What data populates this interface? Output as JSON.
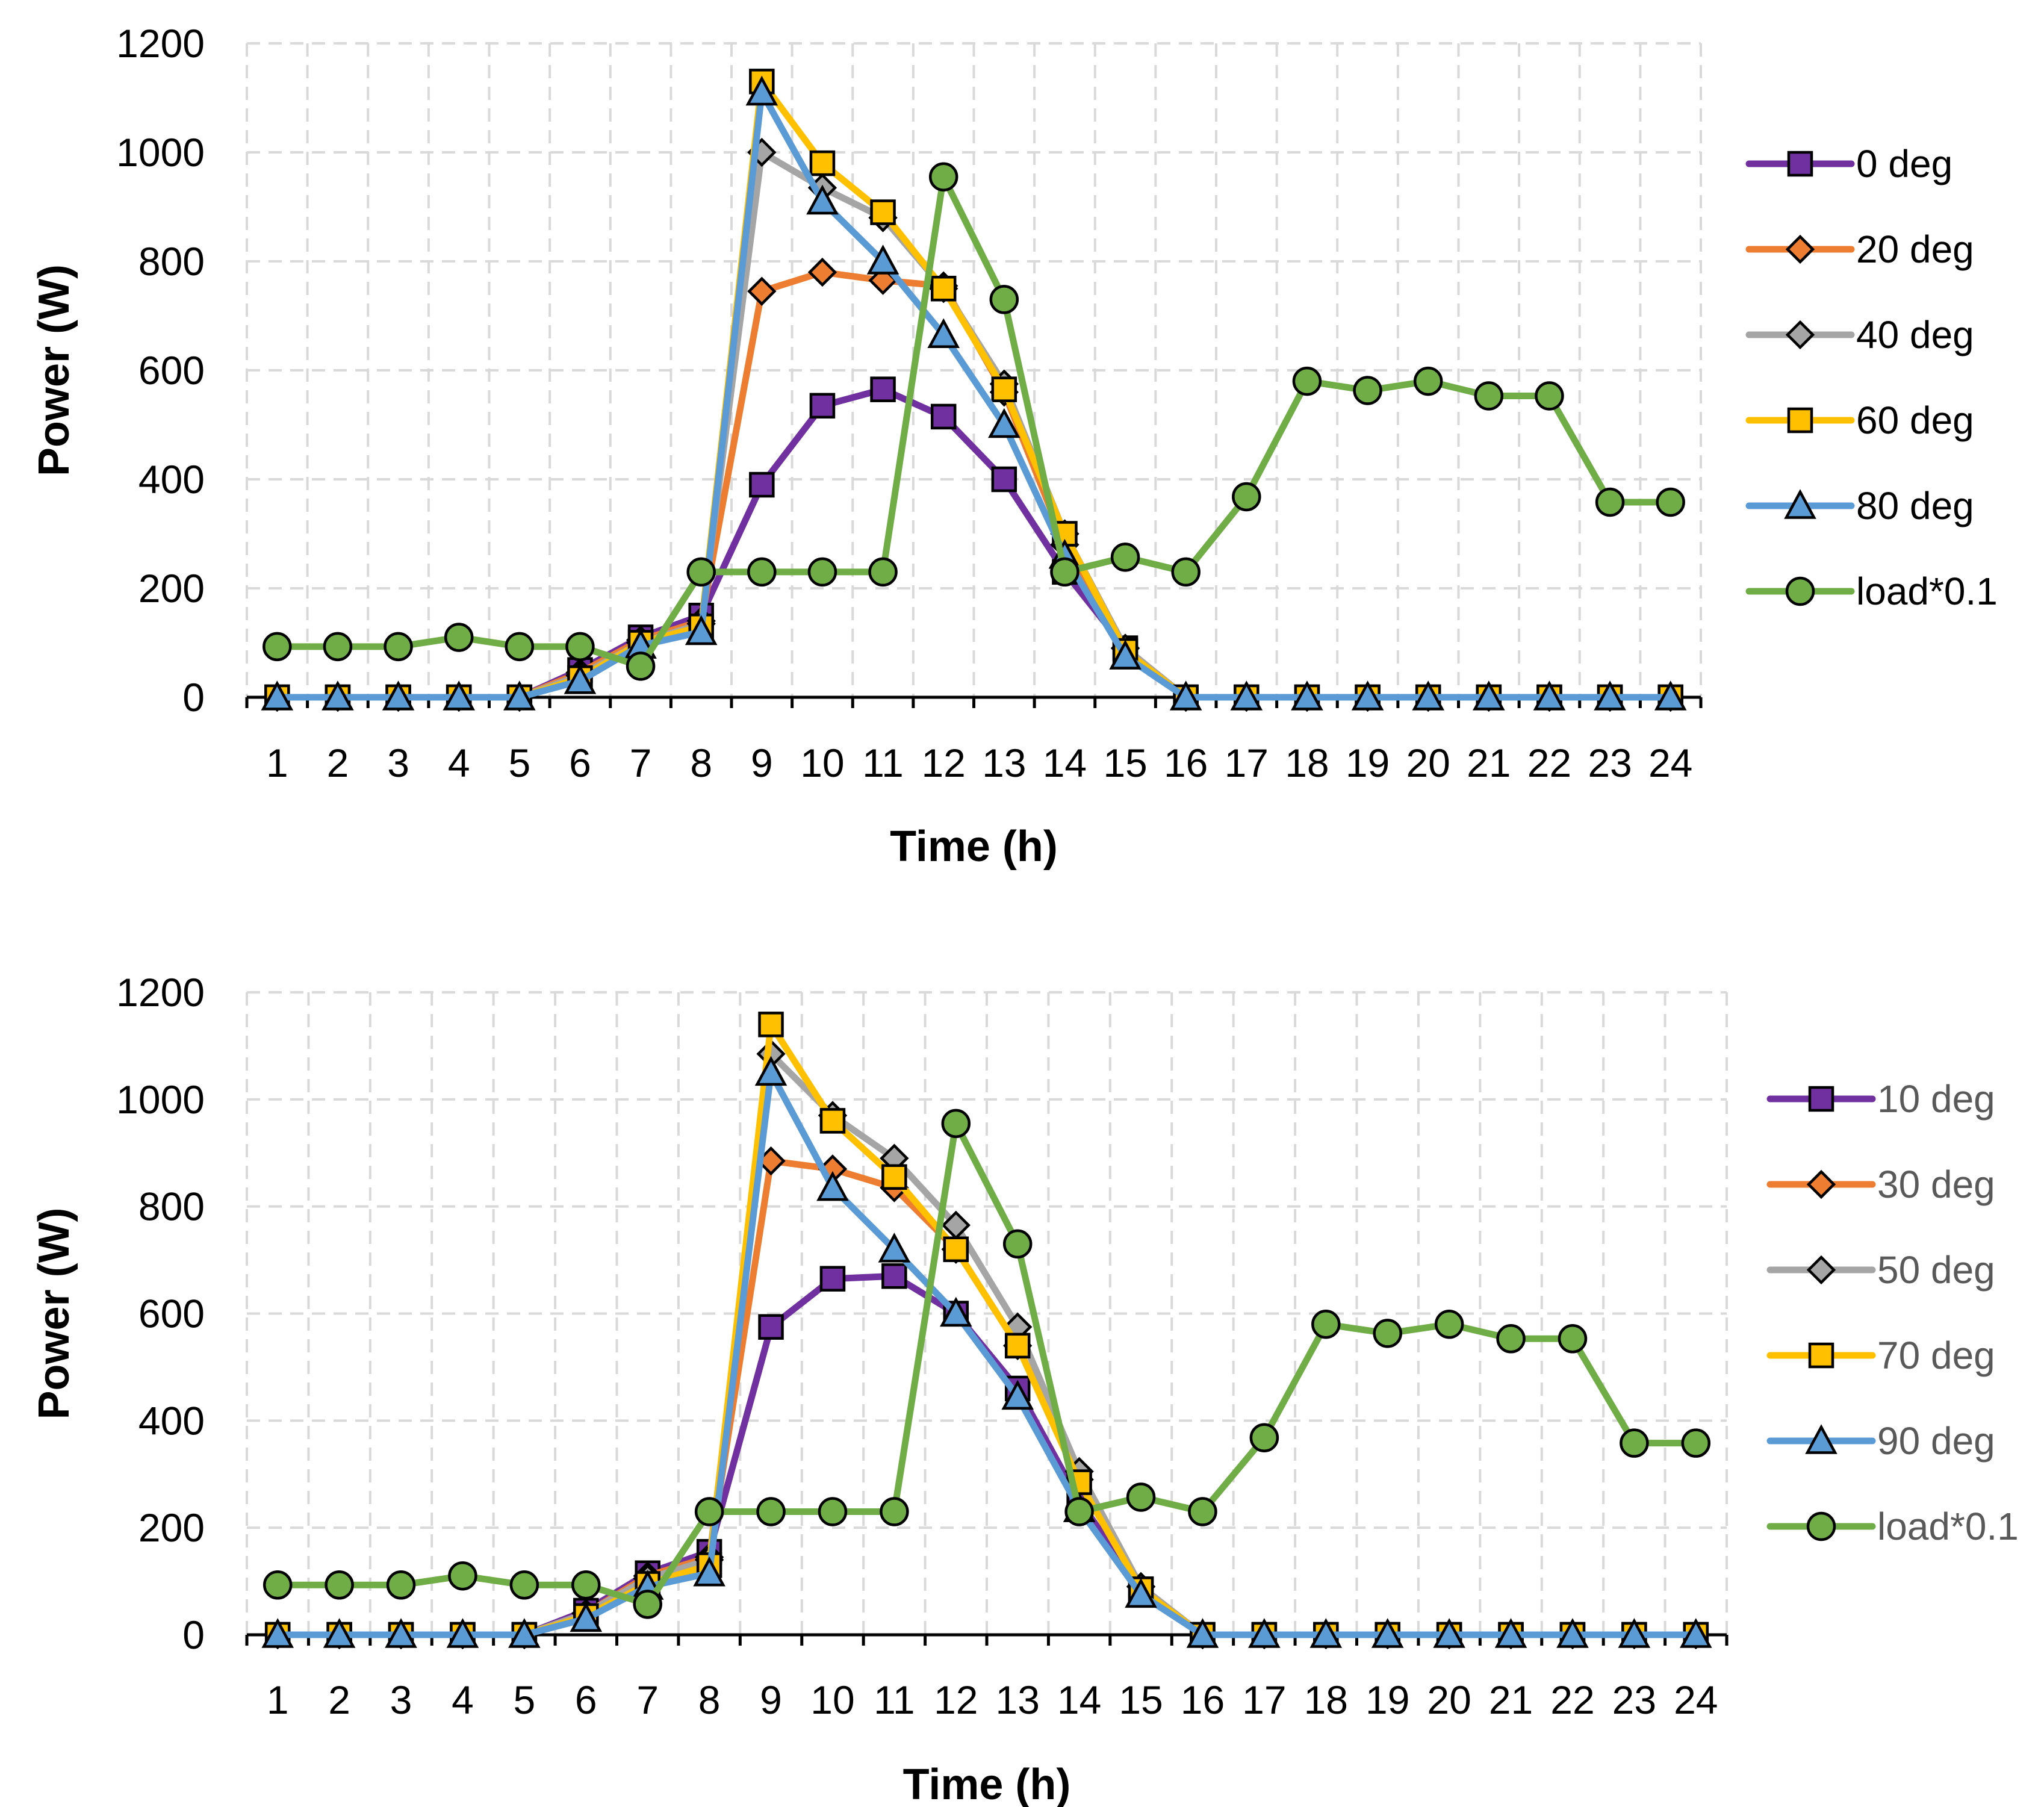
{
  "chart_data": [
    {
      "type": "line",
      "xlabel": "Time (h)",
      "ylabel": "Power (W)",
      "ylim": [
        0,
        1200
      ],
      "yticks": [
        0,
        200,
        400,
        600,
        800,
        1000,
        1200
      ],
      "categories": [
        "1",
        "2",
        "3",
        "4",
        "5",
        "6",
        "7",
        "8",
        "9",
        "10",
        "11",
        "12",
        "13",
        "14",
        "15",
        "16",
        "17",
        "18",
        "19",
        "20",
        "21",
        "22",
        "23",
        "24"
      ],
      "grid": true,
      "legend_position": "right",
      "legend_style": "default",
      "series": [
        {
          "name": "0 deg",
          "color": "#7030a0",
          "marker": "square",
          "values": [
            0,
            0,
            0,
            0,
            0,
            50,
            110,
            150,
            390,
            535,
            565,
            515,
            400,
            230,
            90,
            0,
            0,
            0,
            0,
            0,
            0,
            0,
            0,
            0
          ]
        },
        {
          "name": "20 deg",
          "color": "#ed7d31",
          "marker": "diamond",
          "values": [
            0,
            0,
            0,
            0,
            0,
            45,
            105,
            140,
            745,
            780,
            765,
            755,
            560,
            280,
            90,
            0,
            0,
            0,
            0,
            0,
            0,
            0,
            0,
            0
          ]
        },
        {
          "name": "40 deg",
          "color": "#a5a5a5",
          "marker": "diamond",
          "values": [
            0,
            0,
            0,
            0,
            0,
            40,
            100,
            135,
            1000,
            935,
            880,
            750,
            575,
            300,
            90,
            0,
            0,
            0,
            0,
            0,
            0,
            0,
            0,
            0
          ]
        },
        {
          "name": "60 deg",
          "color": "#ffc000",
          "marker": "square",
          "values": [
            0,
            0,
            0,
            0,
            0,
            35,
            100,
            130,
            1130,
            980,
            890,
            750,
            565,
            300,
            85,
            0,
            0,
            0,
            0,
            0,
            0,
            0,
            0,
            0
          ]
        },
        {
          "name": "80 deg",
          "color": "#5b9bd5",
          "marker": "triangle",
          "values": [
            0,
            0,
            0,
            0,
            0,
            30,
            95,
            120,
            1110,
            910,
            800,
            665,
            500,
            260,
            75,
            0,
            0,
            0,
            0,
            0,
            0,
            0,
            0,
            0
          ]
        },
        {
          "name": "load*0.1",
          "color": "#70ad47",
          "marker": "circle",
          "values": [
            93,
            93,
            93,
            110,
            93,
            93,
            57,
            230,
            230,
            230,
            230,
            955,
            730,
            230,
            257,
            230,
            368,
            580,
            563,
            580,
            553,
            553,
            358,
            358
          ]
        }
      ]
    },
    {
      "type": "line",
      "xlabel": "Time (h)",
      "ylabel": "Power (W)",
      "ylim": [
        0,
        1200
      ],
      "yticks": [
        0,
        200,
        400,
        600,
        800,
        1000,
        1200
      ],
      "categories": [
        "1",
        "2",
        "3",
        "4",
        "5",
        "6",
        "7",
        "8",
        "9",
        "10",
        "11",
        "12",
        "13",
        "14",
        "15",
        "16",
        "17",
        "18",
        "19",
        "20",
        "21",
        "22",
        "23",
        "24"
      ],
      "grid": true,
      "legend_position": "right",
      "legend_style": "muted",
      "series": [
        {
          "name": "10 deg",
          "color": "#7030a0",
          "marker": "square",
          "values": [
            0,
            0,
            0,
            0,
            0,
            45,
            115,
            155,
            575,
            665,
            670,
            600,
            460,
            250,
            85,
            0,
            0,
            0,
            0,
            0,
            0,
            0,
            0,
            0
          ]
        },
        {
          "name": "30 deg",
          "color": "#ed7d31",
          "marker": "diamond",
          "values": [
            0,
            0,
            0,
            0,
            0,
            40,
            110,
            145,
            885,
            870,
            835,
            720,
            540,
            290,
            90,
            0,
            0,
            0,
            0,
            0,
            0,
            0,
            0,
            0
          ]
        },
        {
          "name": "50 deg",
          "color": "#a5a5a5",
          "marker": "diamond",
          "values": [
            0,
            0,
            0,
            0,
            0,
            40,
            105,
            140,
            1085,
            970,
            890,
            765,
            575,
            305,
            90,
            0,
            0,
            0,
            0,
            0,
            0,
            0,
            0,
            0
          ]
        },
        {
          "name": "70 deg",
          "color": "#ffc000",
          "marker": "square",
          "values": [
            0,
            0,
            0,
            0,
            0,
            35,
            95,
            130,
            1140,
            960,
            855,
            720,
            540,
            285,
            85,
            0,
            0,
            0,
            0,
            0,
            0,
            0,
            0,
            0
          ]
        },
        {
          "name": "90 deg",
          "color": "#5b9bd5",
          "marker": "triangle",
          "values": [
            0,
            0,
            0,
            0,
            0,
            30,
            90,
            115,
            1050,
            835,
            720,
            600,
            445,
            235,
            75,
            0,
            0,
            0,
            0,
            0,
            0,
            0,
            0,
            0
          ]
        },
        {
          "name": "load*0.1",
          "color": "#70ad47",
          "marker": "circle",
          "values": [
            93,
            93,
            93,
            110,
            93,
            93,
            57,
            230,
            230,
            230,
            230,
            955,
            730,
            230,
            257,
            230,
            368,
            580,
            563,
            580,
            553,
            553,
            358,
            358
          ]
        }
      ]
    }
  ]
}
